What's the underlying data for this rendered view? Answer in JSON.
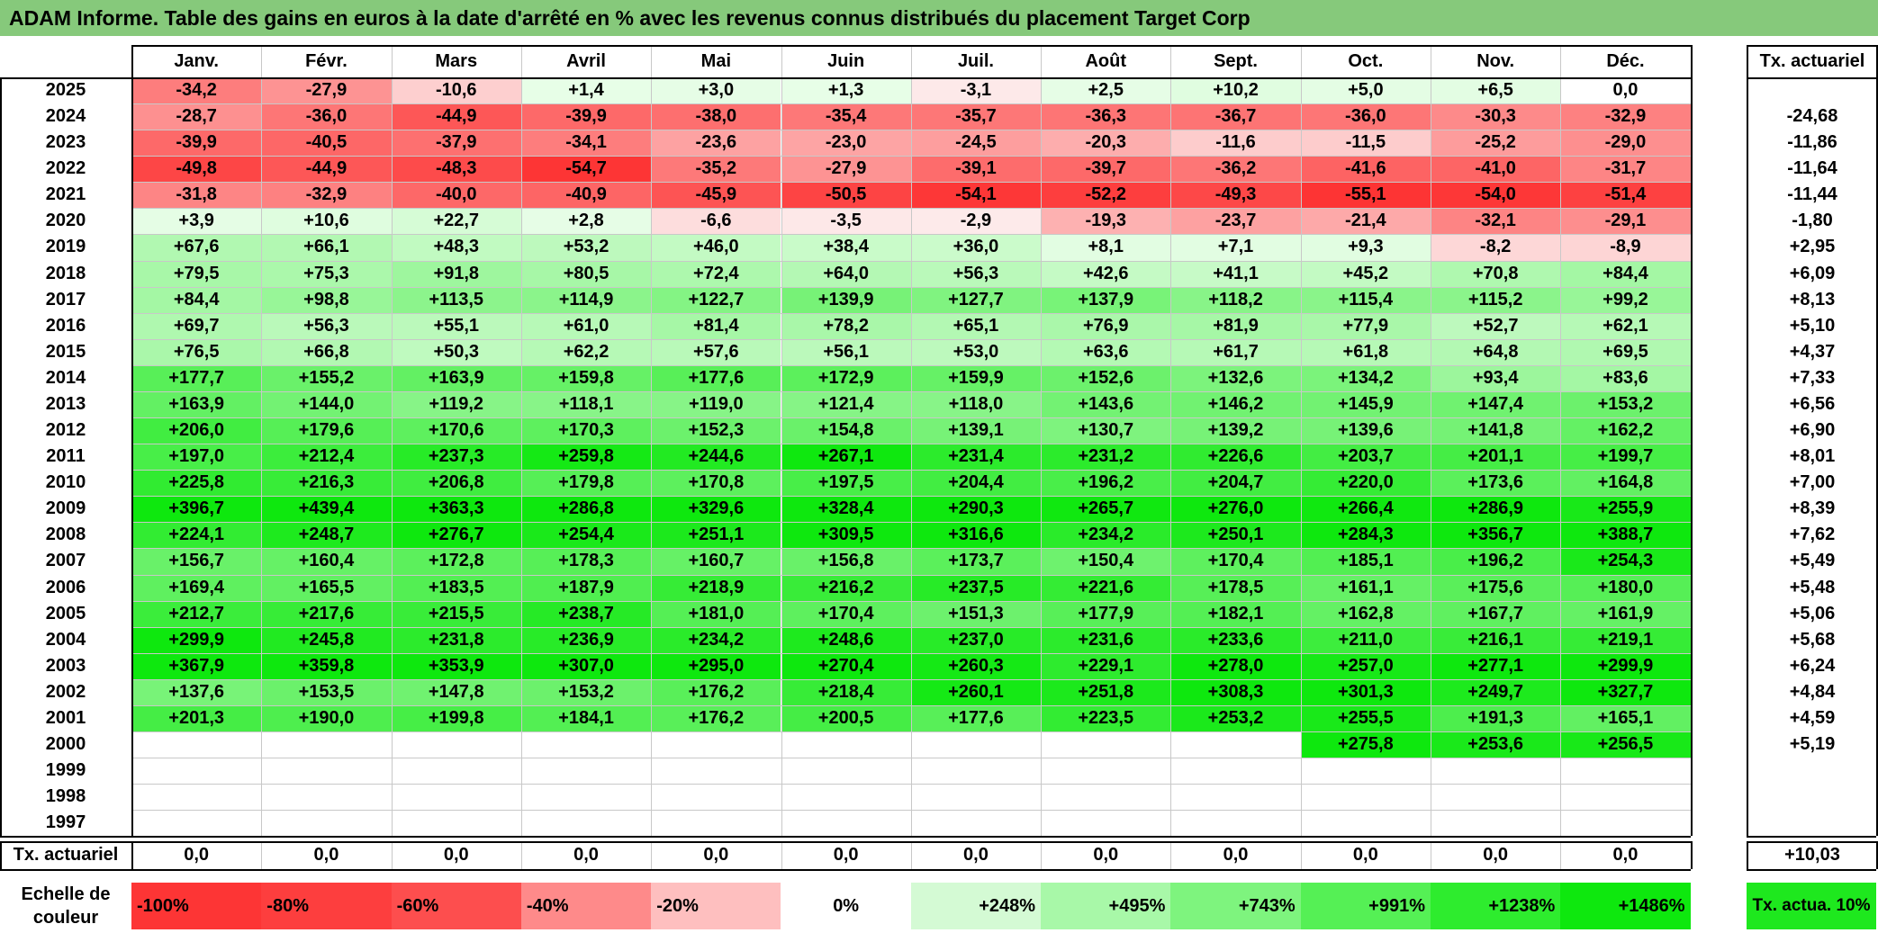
{
  "title": "ADAM Informe. Table des gains en euros à la date d'arrêté en % avec les revenus connus distribués du placement Target Corp",
  "months": [
    "Janv.",
    "Févr.",
    "Mars",
    "Avril",
    "Mai",
    "Juin",
    "Juil.",
    "Août",
    "Sept.",
    "Oct.",
    "Nov.",
    "Déc."
  ],
  "rate_header": "Tx. actuariel",
  "rows": [
    {
      "year": "2025",
      "values": [
        "-34,2",
        "-27,9",
        "-10,6",
        "+1,4",
        "+3,0",
        "+1,3",
        "-3,1",
        "+2,5",
        "+10,2",
        "+5,0",
        "+6,5",
        "0,0"
      ],
      "rate": ""
    },
    {
      "year": "2024",
      "values": [
        "-28,7",
        "-36,0",
        "-44,9",
        "-39,9",
        "-38,0",
        "-35,4",
        "-35,7",
        "-36,3",
        "-36,7",
        "-36,0",
        "-30,3",
        "-32,9"
      ],
      "rate": "-24,68"
    },
    {
      "year": "2023",
      "values": [
        "-39,9",
        "-40,5",
        "-37,9",
        "-34,1",
        "-23,6",
        "-23,0",
        "-24,5",
        "-20,3",
        "-11,6",
        "-11,5",
        "-25,2",
        "-29,0"
      ],
      "rate": "-11,86"
    },
    {
      "year": "2022",
      "values": [
        "-49,8",
        "-44,9",
        "-48,3",
        "-54,7",
        "-35,2",
        "-27,9",
        "-39,1",
        "-39,7",
        "-36,2",
        "-41,6",
        "-41,0",
        "-31,7"
      ],
      "rate": "-11,64"
    },
    {
      "year": "2021",
      "values": [
        "-31,8",
        "-32,9",
        "-40,0",
        "-40,9",
        "-45,9",
        "-50,5",
        "-54,1",
        "-52,2",
        "-49,3",
        "-55,1",
        "-54,0",
        "-51,4"
      ],
      "rate": "-11,44"
    },
    {
      "year": "2020",
      "values": [
        "+3,9",
        "+10,6",
        "+22,7",
        "+2,8",
        "-6,6",
        "-3,5",
        "-2,9",
        "-19,3",
        "-23,7",
        "-21,4",
        "-32,1",
        "-29,1"
      ],
      "rate": "-1,80"
    },
    {
      "year": "2019",
      "values": [
        "+67,6",
        "+66,1",
        "+48,3",
        "+53,2",
        "+46,0",
        "+38,4",
        "+36,0",
        "+8,1",
        "+7,1",
        "+9,3",
        "-8,2",
        "-8,9"
      ],
      "rate": "+2,95"
    },
    {
      "year": "2018",
      "values": [
        "+79,5",
        "+75,3",
        "+91,8",
        "+80,5",
        "+72,4",
        "+64,0",
        "+56,3",
        "+42,6",
        "+41,1",
        "+45,2",
        "+70,8",
        "+84,4"
      ],
      "rate": "+6,09"
    },
    {
      "year": "2017",
      "values": [
        "+84,4",
        "+98,8",
        "+113,5",
        "+114,9",
        "+122,7",
        "+139,9",
        "+127,7",
        "+137,9",
        "+118,2",
        "+115,4",
        "+115,2",
        "+99,2"
      ],
      "rate": "+8,13"
    },
    {
      "year": "2016",
      "values": [
        "+69,7",
        "+56,3",
        "+55,1",
        "+61,0",
        "+81,4",
        "+78,2",
        "+65,1",
        "+76,9",
        "+81,9",
        "+77,9",
        "+52,7",
        "+62,1"
      ],
      "rate": "+5,10"
    },
    {
      "year": "2015",
      "values": [
        "+76,5",
        "+66,8",
        "+50,3",
        "+62,2",
        "+57,6",
        "+56,1",
        "+53,0",
        "+63,6",
        "+61,7",
        "+61,8",
        "+64,8",
        "+69,5"
      ],
      "rate": "+4,37"
    },
    {
      "year": "2014",
      "values": [
        "+177,7",
        "+155,2",
        "+163,9",
        "+159,8",
        "+177,6",
        "+172,9",
        "+159,9",
        "+152,6",
        "+132,6",
        "+134,2",
        "+93,4",
        "+83,6"
      ],
      "rate": "+7,33"
    },
    {
      "year": "2013",
      "values": [
        "+163,9",
        "+144,0",
        "+119,2",
        "+118,1",
        "+119,0",
        "+121,4",
        "+118,0",
        "+143,6",
        "+146,2",
        "+145,9",
        "+147,4",
        "+153,2"
      ],
      "rate": "+6,56"
    },
    {
      "year": "2012",
      "values": [
        "+206,0",
        "+179,6",
        "+170,6",
        "+170,3",
        "+152,3",
        "+154,8",
        "+139,1",
        "+130,7",
        "+139,2",
        "+139,6",
        "+141,8",
        "+162,2"
      ],
      "rate": "+6,90"
    },
    {
      "year": "2011",
      "values": [
        "+197,0",
        "+212,4",
        "+237,3",
        "+259,8",
        "+244,6",
        "+267,1",
        "+231,4",
        "+231,2",
        "+226,6",
        "+203,7",
        "+201,1",
        "+199,7"
      ],
      "rate": "+8,01"
    },
    {
      "year": "2010",
      "values": [
        "+225,8",
        "+216,3",
        "+206,8",
        "+179,8",
        "+170,8",
        "+197,5",
        "+204,4",
        "+196,2",
        "+204,7",
        "+220,0",
        "+173,6",
        "+164,8"
      ],
      "rate": "+7,00"
    },
    {
      "year": "2009",
      "values": [
        "+396,7",
        "+439,4",
        "+363,3",
        "+286,8",
        "+329,6",
        "+328,4",
        "+290,3",
        "+265,7",
        "+276,0",
        "+266,4",
        "+286,9",
        "+255,9"
      ],
      "rate": "+8,39"
    },
    {
      "year": "2008",
      "values": [
        "+224,1",
        "+248,7",
        "+276,7",
        "+254,4",
        "+251,1",
        "+309,5",
        "+316,6",
        "+234,2",
        "+250,1",
        "+284,3",
        "+356,7",
        "+388,7"
      ],
      "rate": "+7,62"
    },
    {
      "year": "2007",
      "values": [
        "+156,7",
        "+160,4",
        "+172,8",
        "+178,3",
        "+160,7",
        "+156,8",
        "+173,7",
        "+150,4",
        "+170,4",
        "+185,1",
        "+196,2",
        "+254,3"
      ],
      "rate": "+5,49"
    },
    {
      "year": "2006",
      "values": [
        "+169,4",
        "+165,5",
        "+183,5",
        "+187,9",
        "+218,9",
        "+216,2",
        "+237,5",
        "+221,6",
        "+178,5",
        "+161,1",
        "+175,6",
        "+180,0"
      ],
      "rate": "+5,48"
    },
    {
      "year": "2005",
      "values": [
        "+212,7",
        "+217,6",
        "+215,5",
        "+238,7",
        "+181,0",
        "+170,4",
        "+151,3",
        "+177,9",
        "+182,1",
        "+162,8",
        "+167,7",
        "+161,9"
      ],
      "rate": "+5,06"
    },
    {
      "year": "2004",
      "values": [
        "+299,9",
        "+245,8",
        "+231,8",
        "+236,9",
        "+234,2",
        "+248,6",
        "+237,0",
        "+231,6",
        "+233,6",
        "+211,0",
        "+216,1",
        "+219,1"
      ],
      "rate": "+5,68"
    },
    {
      "year": "2003",
      "values": [
        "+367,9",
        "+359,8",
        "+353,9",
        "+307,0",
        "+295,0",
        "+270,4",
        "+260,3",
        "+229,1",
        "+278,0",
        "+257,0",
        "+277,1",
        "+299,9"
      ],
      "rate": "+6,24"
    },
    {
      "year": "2002",
      "values": [
        "+137,6",
        "+153,5",
        "+147,8",
        "+153,2",
        "+176,2",
        "+218,4",
        "+260,1",
        "+251,8",
        "+308,3",
        "+301,3",
        "+249,7",
        "+327,7"
      ],
      "rate": "+4,84"
    },
    {
      "year": "2001",
      "values": [
        "+201,3",
        "+190,0",
        "+199,8",
        "+184,1",
        "+176,2",
        "+200,5",
        "+177,6",
        "+223,5",
        "+253,2",
        "+255,5",
        "+191,3",
        "+165,1"
      ],
      "rate": "+4,59"
    },
    {
      "year": "2000",
      "values": [
        "",
        "",
        "",
        "",
        "",
        "",
        "",
        "",
        "",
        "+275,8",
        "+253,6",
        "+256,5"
      ],
      "rate": "+5,19"
    },
    {
      "year": "1999",
      "values": [
        "",
        "",
        "",
        "",
        "",
        "",
        "",
        "",
        "",
        "",
        "",
        ""
      ],
      "rate": ""
    },
    {
      "year": "1998",
      "values": [
        "",
        "",
        "",
        "",
        "",
        "",
        "",
        "",
        "",
        "",
        "",
        ""
      ],
      "rate": ""
    },
    {
      "year": "1997",
      "values": [
        "",
        "",
        "",
        "",
        "",
        "",
        "",
        "",
        "",
        "",
        "",
        ""
      ],
      "rate": ""
    }
  ],
  "footer": {
    "label": "Tx. actuariel",
    "values": [
      "0,0",
      "0,0",
      "0,0",
      "0,0",
      "0,0",
      "0,0",
      "0,0",
      "0,0",
      "0,0",
      "0,0",
      "0,0",
      "0,0"
    ],
    "rate": "+10,03"
  },
  "scale": {
    "label": "Echelle de couleur",
    "steps": [
      {
        "label": "-100%",
        "color": "#fd3535"
      },
      {
        "label": "-80%",
        "color": "#fd3e3e"
      },
      {
        "label": "-60%",
        "color": "#fd4e4e"
      },
      {
        "label": "-40%",
        "color": "#fe8a8a"
      },
      {
        "label": "-20%",
        "color": "#febfbf"
      },
      {
        "label": "0%",
        "color": "#ffffff"
      },
      {
        "label": "+248%",
        "color": "#d4fad4"
      },
      {
        "label": "+495%",
        "color": "#a8f8a8"
      },
      {
        "label": "+743%",
        "color": "#7ef47e"
      },
      {
        "label": "+991%",
        "color": "#55f055"
      },
      {
        "label": "+1238%",
        "color": "#2eec2e"
      },
      {
        "label": "+1486%",
        "color": "#0ee80e"
      }
    ],
    "legend_rate_label": "Tx. actua. 10%",
    "legend_rate_color": "#1ee81e"
  },
  "colors": {
    "title_bg": "#86c97b",
    "negative": "#fd3535",
    "positive": "#0ee80e"
  }
}
